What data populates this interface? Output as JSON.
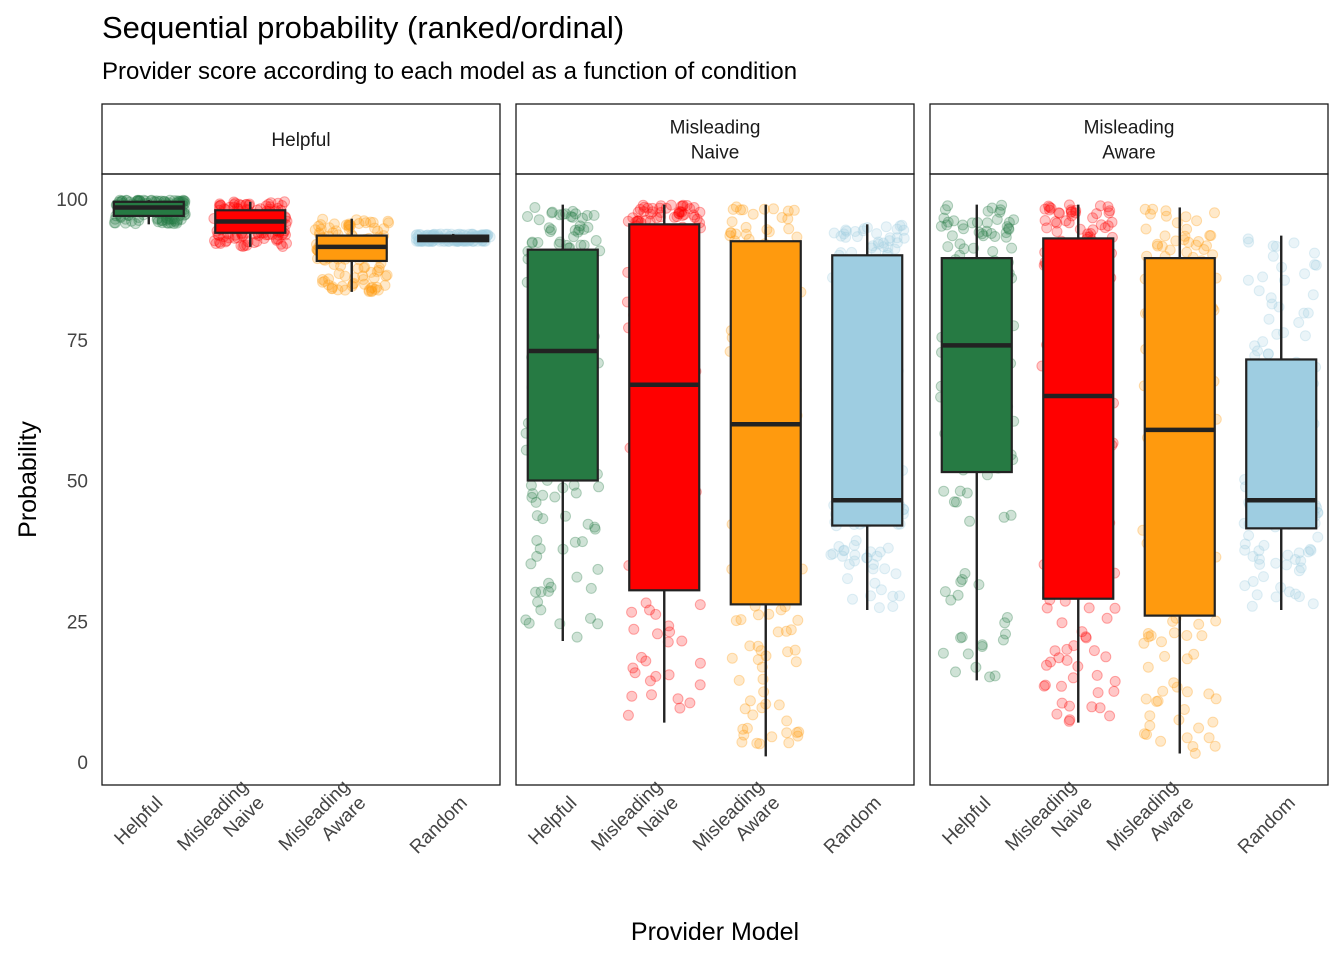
{
  "chart_data": {
    "type": "boxplot",
    "title": "Sequential probability (ranked/ordinal)",
    "subtitle": "Provider score according to each model as a function of condition",
    "xlabel": "Provider Model",
    "ylabel": "Probability",
    "ylim": [
      -4,
      105
    ],
    "yticks": [
      0,
      25,
      50,
      75,
      100
    ],
    "categories": [
      [
        "Helpful"
      ],
      [
        "Misleading",
        "Naive"
      ],
      [
        "Misleading",
        "Aware"
      ],
      [
        "Random"
      ]
    ],
    "colors": {
      "Helpful": "#267a43",
      "Misleading Naive": "#ff0000",
      "Misleading Aware": "#ff9a0e",
      "Random": "#9ecde1"
    },
    "jitter_points": true,
    "grid": false,
    "legend": "none",
    "panels": [
      {
        "label": [
          "Helpful"
        ],
        "boxes": [
          {
            "category": "Helpful",
            "min": 95.5,
            "q1": 97.0,
            "median": 98.5,
            "q3": 99.5,
            "max": 99.8
          },
          {
            "category": "Misleading Naive",
            "min": 91.5,
            "q1": 94.0,
            "median": 96.0,
            "q3": 98.0,
            "max": 99.5
          },
          {
            "category": "Misleading Aware",
            "min": 83.5,
            "q1": 89.0,
            "median": 91.5,
            "q3": 93.5,
            "max": 96.5
          },
          {
            "category": "Random",
            "min": 92.5,
            "q1": 92.5,
            "median": 93.0,
            "q3": 93.5,
            "max": 93.8
          }
        ]
      },
      {
        "label": [
          "Misleading",
          "Naive"
        ],
        "boxes": [
          {
            "category": "Helpful",
            "min": 21.5,
            "q1": 50.0,
            "median": 73.0,
            "q3": 91.0,
            "max": 99.0
          },
          {
            "category": "Misleading Naive",
            "min": 7.0,
            "q1": 30.5,
            "median": 67.0,
            "q3": 95.5,
            "max": 99.0
          },
          {
            "category": "Misleading Aware",
            "min": 1.0,
            "q1": 28.0,
            "median": 60.0,
            "q3": 92.5,
            "max": 99.0
          },
          {
            "category": "Random",
            "min": 27.0,
            "q1": 42.0,
            "median": 46.5,
            "q3": 90.0,
            "max": 95.5
          }
        ]
      },
      {
        "label": [
          "Misleading",
          "Aware"
        ],
        "boxes": [
          {
            "category": "Helpful",
            "min": 14.5,
            "q1": 51.5,
            "median": 74.0,
            "q3": 89.5,
            "max": 99.0
          },
          {
            "category": "Misleading Naive",
            "min": 7.0,
            "q1": 29.0,
            "median": 65.0,
            "q3": 93.0,
            "max": 99.0
          },
          {
            "category": "Misleading Aware",
            "min": 1.5,
            "q1": 26.0,
            "median": 59.0,
            "q3": 89.5,
            "max": 98.5
          },
          {
            "category": "Random",
            "min": 27.0,
            "q1": 41.5,
            "median": 46.5,
            "q3": 71.5,
            "max": 93.5
          }
        ]
      }
    ]
  }
}
